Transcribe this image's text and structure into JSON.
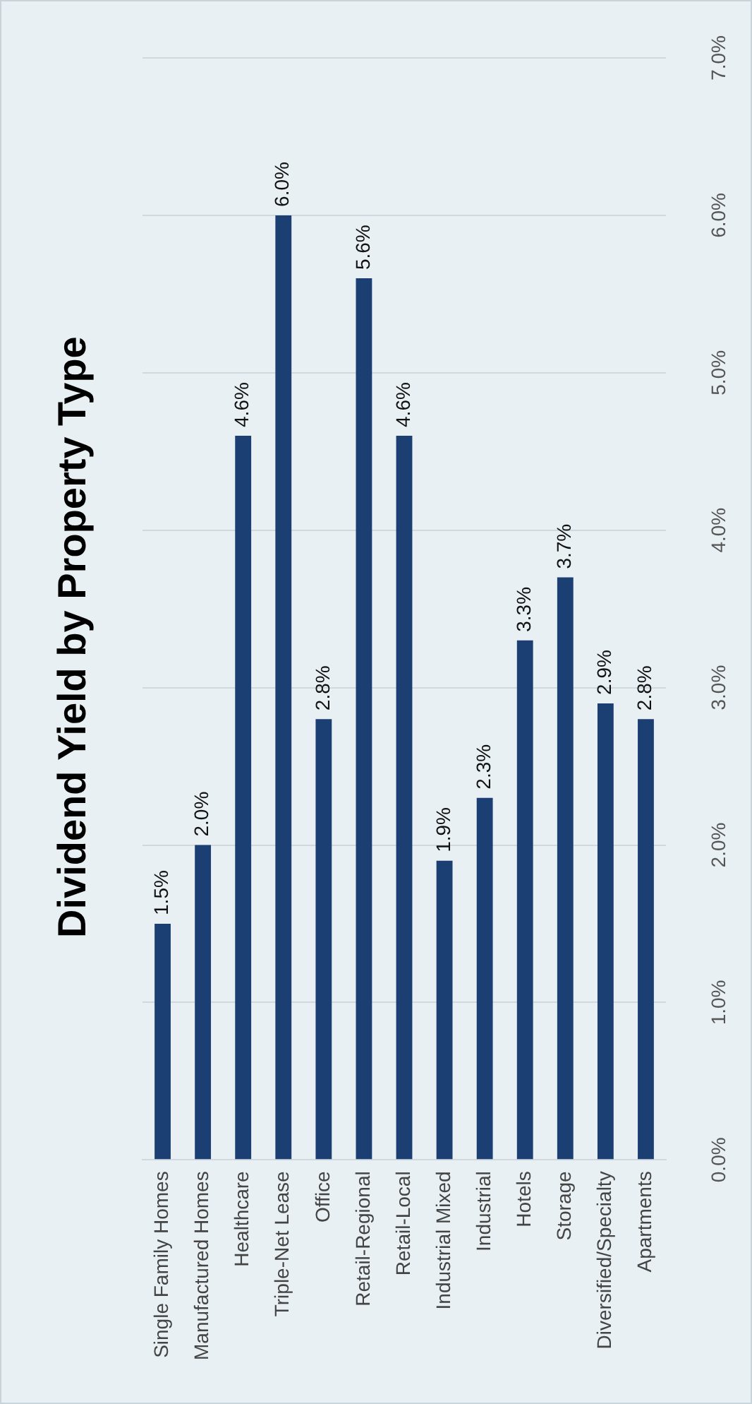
{
  "chart_data": {
    "type": "bar",
    "title": "Dividend Yield by Property Type",
    "categories": [
      "Single Family Homes",
      "Manufactured Homes",
      "Healthcare",
      "Triple-Net Lease",
      "Office",
      "Retail-Regional",
      "Retail-Local",
      "Industrial Mixed",
      "Industrial",
      "Hotels",
      "Storage",
      "Diversified/Specialty",
      "Apartments"
    ],
    "values": [
      1.5,
      2.0,
      4.6,
      6.0,
      2.8,
      5.6,
      4.6,
      1.9,
      2.3,
      3.3,
      3.7,
      2.9,
      2.8
    ],
    "value_labels": [
      "1.5%",
      "2.0%",
      "4.6%",
      "6.0%",
      "2.8%",
      "5.6%",
      "4.6%",
      "1.9%",
      "2.3%",
      "3.3%",
      "3.7%",
      "2.9%",
      "2.8%"
    ],
    "color": "#1c3f73",
    "ylim": [
      0,
      7
    ],
    "yticks": [
      {
        "value": 0,
        "label": "0.0%"
      },
      {
        "value": 1,
        "label": "1.0%"
      },
      {
        "value": 2,
        "label": "2.0%"
      },
      {
        "value": 3,
        "label": "3.0%"
      },
      {
        "value": 4,
        "label": "4.0%"
      },
      {
        "value": 5,
        "label": "5.0%"
      },
      {
        "value": 6,
        "label": "6.0%"
      },
      {
        "value": 7,
        "label": "7.0%"
      }
    ],
    "grid": "y",
    "legend": false
  }
}
